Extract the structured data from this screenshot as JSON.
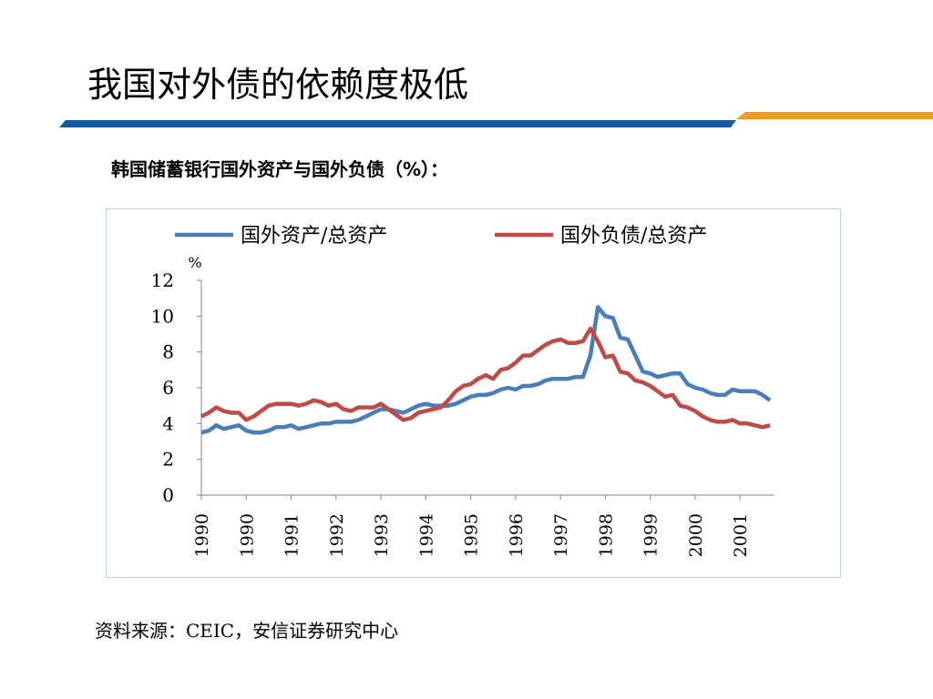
{
  "header": {
    "title": "我国对外债的依赖度极低",
    "subtitle": "韩国储蓄银行国外资产与国外负债（%）：",
    "source": "资料来源：CEIC，安信证券研究中心"
  },
  "chart_data": {
    "type": "line",
    "y_label": "%",
    "categories": [
      "1990",
      null,
      null,
      null,
      null,
      null,
      "1990",
      null,
      null,
      null,
      null,
      null,
      "1991",
      null,
      null,
      null,
      null,
      null,
      "1992",
      null,
      null,
      null,
      null,
      null,
      "1993",
      null,
      null,
      null,
      null,
      null,
      "1994",
      null,
      null,
      null,
      null,
      null,
      "1995",
      null,
      null,
      null,
      null,
      null,
      "1996",
      null,
      null,
      null,
      null,
      null,
      "1997",
      null,
      null,
      null,
      null,
      null,
      "1998",
      null,
      null,
      null,
      null,
      null,
      "1999",
      null,
      null,
      null,
      null,
      null,
      "2000",
      null,
      null,
      null,
      null,
      null,
      "2001",
      null,
      null,
      null,
      null
    ],
    "series": [
      {
        "name": "国外资产/总资产",
        "color": "#4a7ebb",
        "values": [
          3.5,
          3.6,
          3.9,
          3.7,
          3.8,
          3.9,
          3.6,
          3.5,
          3.5,
          3.6,
          3.8,
          3.8,
          3.9,
          3.7,
          3.8,
          3.9,
          4.0,
          4.0,
          4.1,
          4.1,
          4.1,
          4.2,
          4.4,
          4.6,
          4.8,
          4.8,
          4.7,
          4.6,
          4.8,
          5.0,
          5.1,
          5.0,
          5.0,
          5.0,
          5.1,
          5.3,
          5.5,
          5.6,
          5.6,
          5.7,
          5.9,
          6.0,
          5.9,
          6.1,
          6.1,
          6.2,
          6.4,
          6.5,
          6.5,
          6.5,
          6.6,
          6.6,
          7.8,
          10.5,
          10.0,
          9.9,
          8.8,
          8.7,
          7.8,
          6.9,
          6.8,
          6.6,
          6.7,
          6.8,
          6.8,
          6.2,
          6.0,
          5.9,
          5.7,
          5.6,
          5.6,
          5.9,
          5.8,
          5.8,
          5.8,
          5.6,
          5.3
        ]
      },
      {
        "name": "国外负债/总资产",
        "color": "#be4b48",
        "values": [
          4.4,
          4.6,
          4.9,
          4.7,
          4.6,
          4.6,
          4.2,
          4.4,
          4.7,
          5.0,
          5.1,
          5.1,
          5.1,
          5.0,
          5.1,
          5.3,
          5.2,
          5.0,
          5.1,
          4.8,
          4.7,
          4.9,
          4.9,
          4.9,
          5.1,
          4.8,
          4.5,
          4.2,
          4.3,
          4.6,
          4.7,
          4.8,
          4.9,
          5.3,
          5.8,
          6.1,
          6.2,
          6.5,
          6.7,
          6.5,
          7.0,
          7.1,
          7.4,
          7.8,
          7.8,
          8.1,
          8.4,
          8.6,
          8.7,
          8.5,
          8.5,
          8.6,
          9.3,
          8.6,
          7.7,
          7.8,
          6.9,
          6.8,
          6.4,
          6.3,
          6.1,
          5.8,
          5.5,
          5.6,
          5.0,
          4.9,
          4.7,
          4.4,
          4.2,
          4.1,
          4.1,
          4.2,
          4.0,
          4.0,
          3.9,
          3.8,
          3.9
        ]
      }
    ],
    "ylim": [
      0,
      12
    ],
    "yticks": [
      0,
      2,
      4,
      6,
      8,
      10,
      12
    ],
    "grid": false,
    "legend": "top"
  }
}
